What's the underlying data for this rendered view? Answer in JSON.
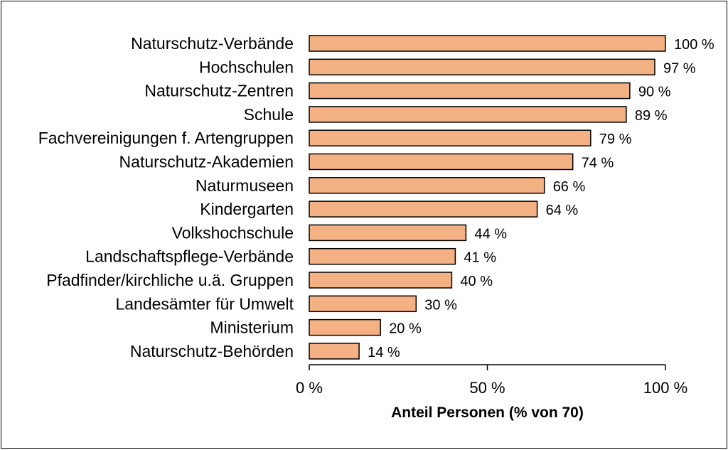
{
  "chart_data": {
    "type": "bar",
    "orientation": "horizontal",
    "categories": [
      "Naturschutz-Verbände",
      "Hochschulen",
      "Naturschutz-Zentren",
      "Schule",
      "Fachvereinigungen f. Artengruppen",
      "Naturschutz-Akademien",
      "Naturmuseen",
      "Kindergarten",
      "Volkshochschule",
      "Landschaftspflege-Verbände",
      "Pfadfinder/kirchliche u.ä. Gruppen",
      "Landesämter für Umwelt",
      "Ministerium",
      "Naturschutz-Behörden"
    ],
    "values": [
      100,
      97,
      90,
      89,
      79,
      74,
      66,
      64,
      44,
      41,
      40,
      30,
      20,
      14
    ],
    "value_labels": [
      "100 %",
      "97 %",
      "90 %",
      "89 %",
      "79 %",
      "74 %",
      "66 %",
      "64 %",
      "44 %",
      "41 %",
      "40 %",
      "30 %",
      "20 %",
      "14 %"
    ],
    "xlabel": "Anteil Personen (% von 70)",
    "ylabel": "",
    "xlim": [
      0,
      100
    ],
    "xticks": [
      0,
      50,
      100
    ],
    "xtick_labels": [
      "0 %",
      "50 %",
      "100 %"
    ],
    "grid": false,
    "legend": "none",
    "bar_color": "#f4b183",
    "bar_edge_color": "#000000"
  }
}
